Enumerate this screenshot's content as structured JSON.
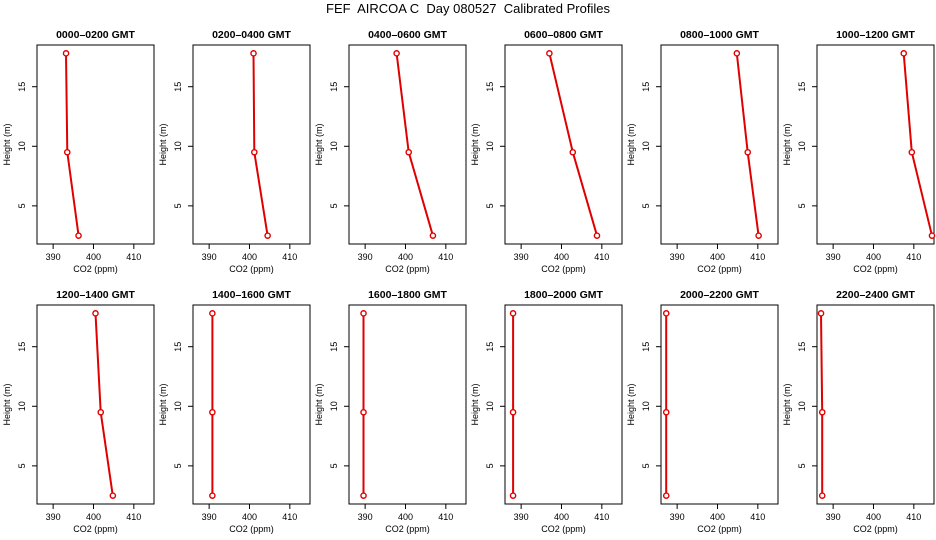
{
  "title": "FEF  AIRCOA C  Day 080527  Calibrated Profiles",
  "colors": {
    "series": "#e00000",
    "axis": "#000000",
    "background": "#ffffff"
  },
  "chart_data": [
    {
      "type": "line",
      "title": "0000–0200 GMT",
      "xlabel": "CO2 (ppm)",
      "ylabel": "Height (m)",
      "x": [
        396.3,
        393.5,
        393.2
      ],
      "y": [
        2.5,
        9.5,
        17.8
      ],
      "xlim": [
        386,
        415
      ],
      "ylim": [
        1.8,
        18.5
      ],
      "xticks": [
        390,
        400,
        410
      ],
      "yticks": [
        5,
        10,
        15
      ],
      "grid": false
    },
    {
      "type": "line",
      "title": "0200–0400 GMT",
      "xlabel": "CO2 (ppm)",
      "ylabel": "Height (m)",
      "x": [
        404.5,
        401.2,
        401.0
      ],
      "y": [
        2.5,
        9.5,
        17.8
      ],
      "xlim": [
        386,
        415
      ],
      "ylim": [
        1.8,
        18.5
      ],
      "xticks": [
        390,
        400,
        410
      ],
      "yticks": [
        5,
        10,
        15
      ],
      "grid": false
    },
    {
      "type": "line",
      "title": "0400–0600 GMT",
      "xlabel": "CO2 (ppm)",
      "ylabel": "Height (m)",
      "x": [
        406.8,
        400.8,
        397.8
      ],
      "y": [
        2.5,
        9.5,
        17.8
      ],
      "xlim": [
        386,
        415
      ],
      "ylim": [
        1.8,
        18.5
      ],
      "xticks": [
        390,
        400,
        410
      ],
      "yticks": [
        5,
        10,
        15
      ],
      "grid": false
    },
    {
      "type": "line",
      "title": "0600–0800 GMT",
      "xlabel": "CO2 (ppm)",
      "ylabel": "Height (m)",
      "x": [
        408.8,
        402.8,
        397.0
      ],
      "y": [
        2.5,
        9.5,
        17.8
      ],
      "xlim": [
        386,
        415
      ],
      "ylim": [
        1.8,
        18.5
      ],
      "xticks": [
        390,
        400,
        410
      ],
      "yticks": [
        5,
        10,
        15
      ],
      "grid": false
    },
    {
      "type": "line",
      "title": "0800–1000 GMT",
      "xlabel": "CO2 (ppm)",
      "ylabel": "Height (m)",
      "x": [
        410.2,
        407.5,
        404.8
      ],
      "y": [
        2.5,
        9.5,
        17.8
      ],
      "xlim": [
        386,
        415
      ],
      "ylim": [
        1.8,
        18.5
      ],
      "xticks": [
        390,
        400,
        410
      ],
      "yticks": [
        5,
        10,
        15
      ],
      "grid": false
    },
    {
      "type": "line",
      "title": "1000–1200 GMT",
      "xlabel": "CO2 (ppm)",
      "ylabel": "Height (m)",
      "x": [
        414.5,
        409.5,
        407.5
      ],
      "y": [
        2.5,
        9.5,
        17.8
      ],
      "xlim": [
        386,
        415
      ],
      "ylim": [
        1.8,
        18.5
      ],
      "xticks": [
        390,
        400,
        410
      ],
      "yticks": [
        5,
        10,
        15
      ],
      "grid": false
    },
    {
      "type": "line",
      "title": "1200–1400 GMT",
      "xlabel": "CO2 (ppm)",
      "ylabel": "Height (m)",
      "x": [
        404.8,
        401.8,
        400.5
      ],
      "y": [
        2.5,
        9.5,
        17.8
      ],
      "xlim": [
        386,
        415
      ],
      "ylim": [
        1.8,
        18.5
      ],
      "xticks": [
        390,
        400,
        410
      ],
      "yticks": [
        5,
        10,
        15
      ],
      "grid": false
    },
    {
      "type": "line",
      "title": "1400–1600 GMT",
      "xlabel": "CO2 (ppm)",
      "ylabel": "Height (m)",
      "x": [
        390.8,
        390.8,
        390.8
      ],
      "y": [
        2.5,
        9.5,
        17.8
      ],
      "xlim": [
        386,
        415
      ],
      "ylim": [
        1.8,
        18.5
      ],
      "xticks": [
        390,
        400,
        410
      ],
      "yticks": [
        5,
        10,
        15
      ],
      "grid": false
    },
    {
      "type": "line",
      "title": "1600–1800 GMT",
      "xlabel": "CO2 (ppm)",
      "ylabel": "Height (m)",
      "x": [
        389.6,
        389.6,
        389.6
      ],
      "y": [
        2.5,
        9.5,
        17.8
      ],
      "xlim": [
        386,
        415
      ],
      "ylim": [
        1.8,
        18.5
      ],
      "xticks": [
        390,
        400,
        410
      ],
      "yticks": [
        5,
        10,
        15
      ],
      "grid": false
    },
    {
      "type": "line",
      "title": "1800–2000 GMT",
      "xlabel": "CO2 (ppm)",
      "ylabel": "Height (m)",
      "x": [
        388.0,
        388.0,
        388.0
      ],
      "y": [
        2.5,
        9.5,
        17.8
      ],
      "xlim": [
        386,
        415
      ],
      "ylim": [
        1.8,
        18.5
      ],
      "xticks": [
        390,
        400,
        410
      ],
      "yticks": [
        5,
        10,
        15
      ],
      "grid": false
    },
    {
      "type": "line",
      "title": "2000–2200 GMT",
      "xlabel": "CO2 (ppm)",
      "ylabel": "Height (m)",
      "x": [
        387.3,
        387.3,
        387.3
      ],
      "y": [
        2.5,
        9.5,
        17.8
      ],
      "xlim": [
        386,
        415
      ],
      "ylim": [
        1.8,
        18.5
      ],
      "xticks": [
        390,
        400,
        410
      ],
      "yticks": [
        5,
        10,
        15
      ],
      "grid": false
    },
    {
      "type": "line",
      "title": "2200–2400 GMT",
      "xlabel": "CO2 (ppm)",
      "ylabel": "Height (m)",
      "x": [
        387.3,
        387.3,
        387.0
      ],
      "y": [
        2.5,
        9.5,
        17.8
      ],
      "xlim": [
        386,
        415
      ],
      "ylim": [
        1.8,
        18.5
      ],
      "xticks": [
        390,
        400,
        410
      ],
      "yticks": [
        5,
        10,
        15
      ],
      "grid": false
    }
  ]
}
